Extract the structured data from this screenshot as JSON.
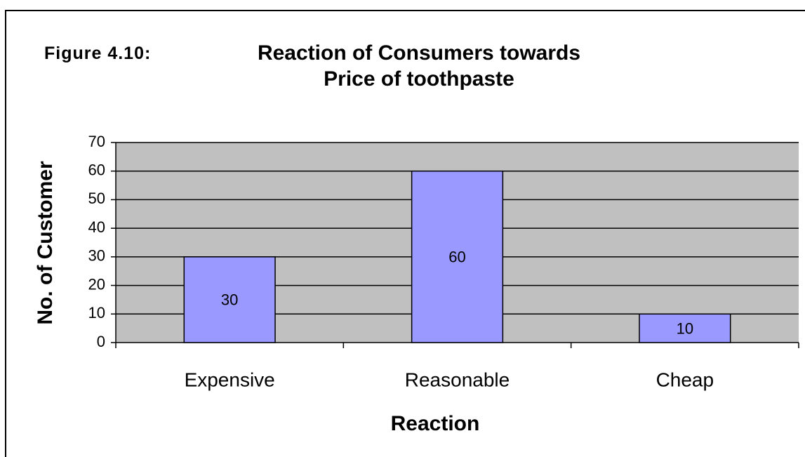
{
  "chart_data": {
    "type": "bar",
    "figure_label": "Figure 4.10:",
    "title": "Reaction of Consumers towards Price of toothpaste",
    "x_label": "Reaction",
    "y_label": "No. of Customer",
    "categories": [
      "Expensive",
      "Reasonable",
      "Cheap"
    ],
    "values": [
      30,
      60,
      10
    ],
    "color": "#9999ff",
    "ylim": [
      0,
      70
    ],
    "yticks": [
      0,
      10,
      20,
      30,
      40,
      50,
      60,
      70
    ],
    "grid": true
  }
}
